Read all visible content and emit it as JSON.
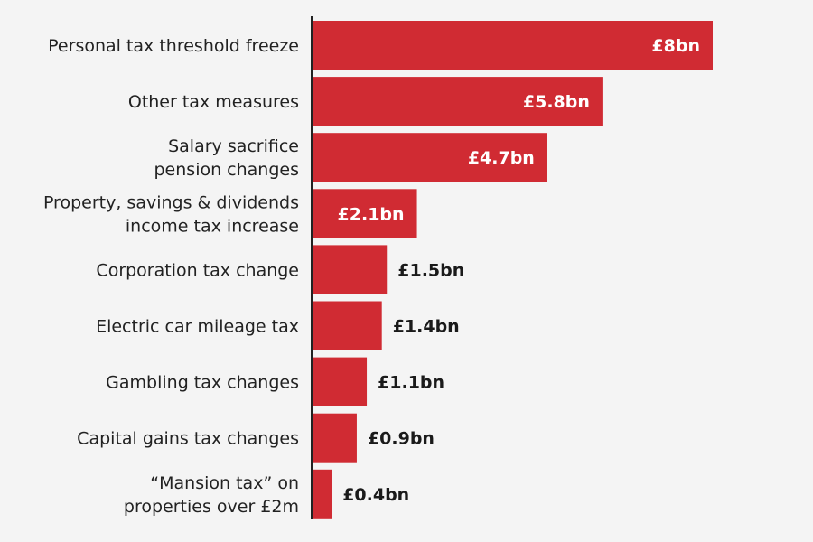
{
  "chart_data": {
    "type": "bar",
    "orientation": "horizontal",
    "categories": [
      [
        "Personal tax threshold freeze"
      ],
      [
        "Other tax measures"
      ],
      [
        "Salary sacrifice",
        "pension changes"
      ],
      [
        "Property, savings & dividends",
        "income tax increase"
      ],
      [
        "Corporation tax change"
      ],
      [
        "Electric car mileage tax"
      ],
      [
        "Gambling tax changes"
      ],
      [
        "Capital gains tax changes"
      ],
      [
        "“Mansion tax” on",
        "properties over £2m"
      ]
    ],
    "values": [
      8,
      5.8,
      4.7,
      2.1,
      1.5,
      1.4,
      1.1,
      0.9,
      0.4
    ],
    "data_labels": [
      "£8bn",
      "£5.8bn",
      "£4.7bn",
      "£2.1bn",
      "£1.5bn",
      "£1.4bn",
      "£1.1bn",
      "£0.9bn",
      "£0.4bn"
    ],
    "unit": "£bn",
    "xlim": [
      0,
      8
    ],
    "grid": false,
    "colors": {
      "bar": "#d02b33",
      "label_inside": "#ffffff",
      "label_outside": "#1a1a1a",
      "axis": "#222222"
    }
  }
}
